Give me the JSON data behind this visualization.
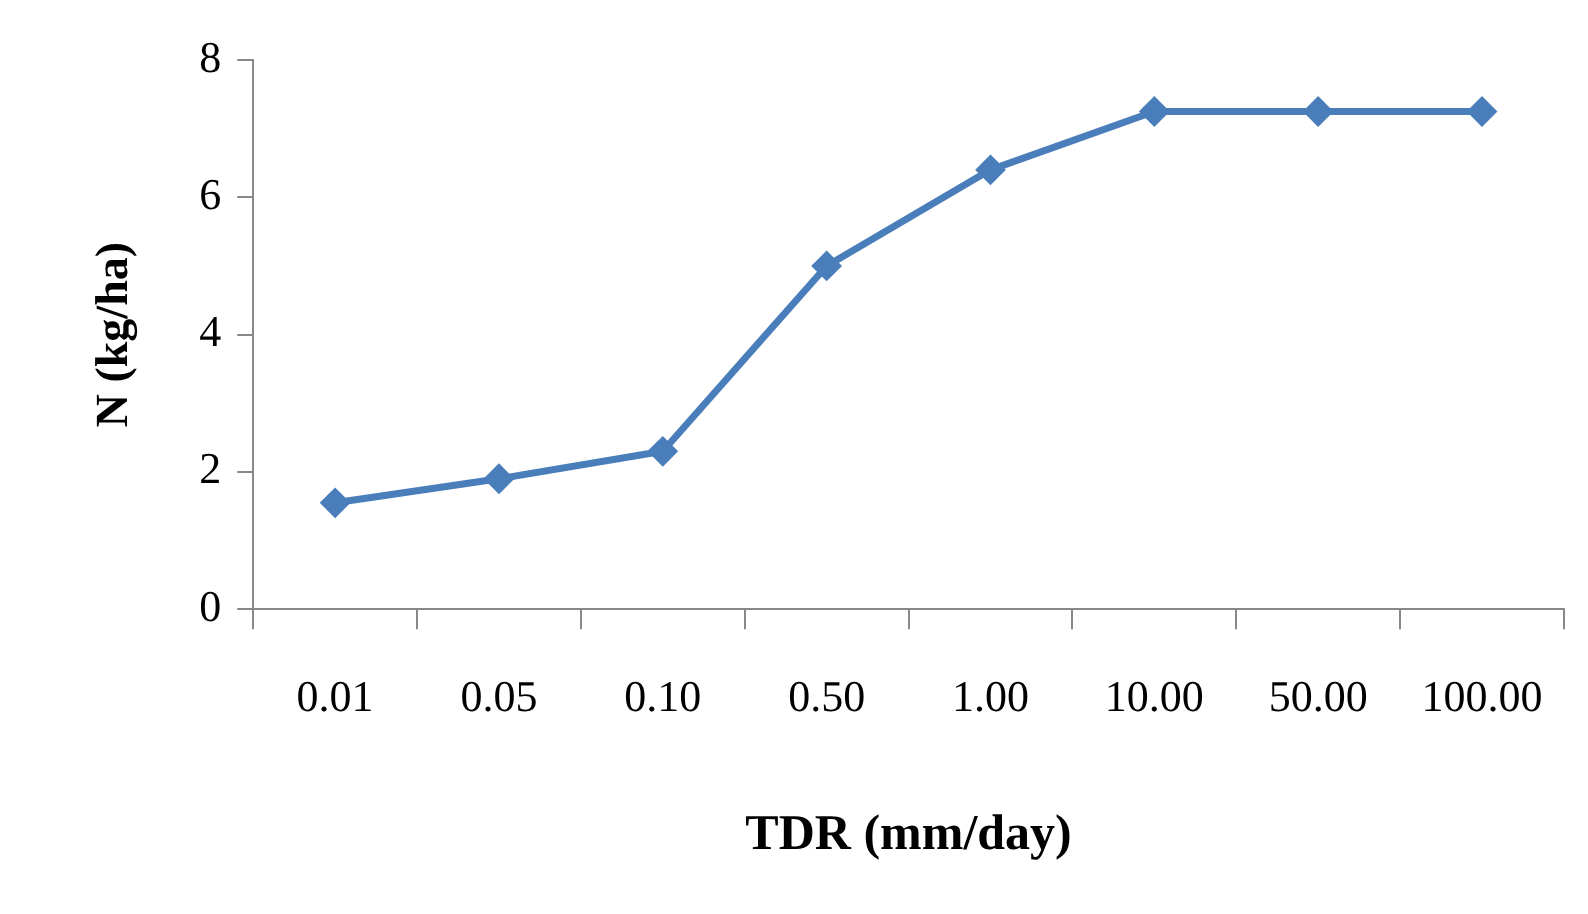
{
  "chart_data": {
    "type": "line",
    "xlabel": "TDR (mm/day)",
    "ylabel": "N (kg/ha)",
    "categories": [
      "0.01",
      "0.05",
      "0.10",
      "0.50",
      "1.00",
      "10.00",
      "50.00",
      "100.00"
    ],
    "series": [
      {
        "color": "#4a7ebb",
        "values": [
          1.55,
          1.9,
          2.3,
          5.0,
          6.4,
          7.25,
          7.25,
          7.25
        ]
      }
    ],
    "ylim": [
      0,
      8
    ],
    "yticks": [
      0,
      2,
      4,
      6,
      8
    ],
    "grid": false,
    "legend": false,
    "marker": "diamond",
    "line_style": "solid"
  }
}
